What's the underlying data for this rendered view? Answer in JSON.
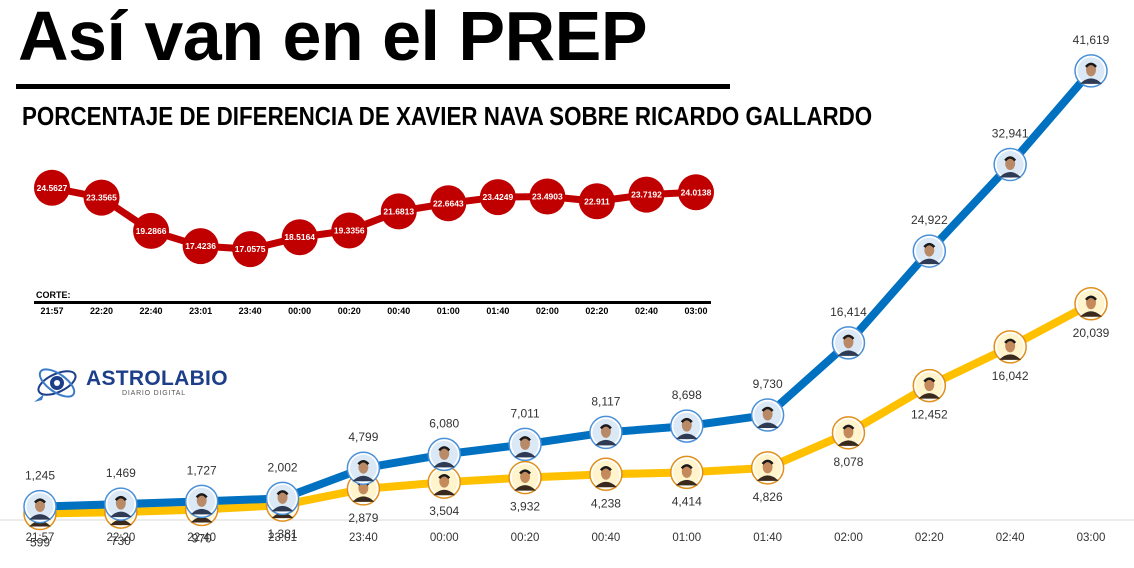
{
  "header": {
    "headline": "Así van en el PREP",
    "subtitle": "PORCENTAJE DE DIFERENCIA DE XAVIER NAVA SOBRE RICARDO GALLARDO"
  },
  "brand": {
    "name": "ASTROLABIO",
    "tagline": "DIARIO DIGITAL",
    "accent": "#1d3f8a"
  },
  "icons": {
    "brand": "astrolabe-logo-icon",
    "blue_marker": "candidate-portrait-icon",
    "yellow_marker": "candidate-portrait-icon"
  },
  "colors": {
    "percent_line": "#c00000",
    "blue_series": "#0070c0",
    "yellow_series": "#ffc000"
  },
  "chart_data": [
    {
      "type": "line",
      "title": "PORCENTAJE DE DIFERENCIA DE XAVIER NAVA SOBRE RICARDO GALLARDO",
      "xlabel": "CORTE:",
      "ylabel": "",
      "categories": [
        "21:57",
        "22:20",
        "22:40",
        "23:01",
        "23:40",
        "00:00",
        "00:20",
        "00:40",
        "01:00",
        "01:40",
        "02:00",
        "02:20",
        "02:40",
        "03:00"
      ],
      "values": [
        24.5627,
        23.3565,
        19.2866,
        17.4236,
        17.0575,
        18.5164,
        19.3356,
        21.6813,
        22.6643,
        23.4249,
        23.4903,
        22.911,
        23.7192,
        24.0138
      ],
      "data_labels": [
        "24.5627",
        "23.3565",
        "19.2866",
        "17.4236",
        "17.0575",
        "18.5164",
        "19.3356",
        "21.6813",
        "22.6643",
        "23.4249",
        "23.4903",
        "22.911",
        "23.7192",
        "24.0138"
      ],
      "ylim": [
        15,
        26
      ],
      "grid": false,
      "legend": "none"
    },
    {
      "type": "line",
      "title": "",
      "xlabel": "",
      "ylabel": "",
      "categories": [
        "21:57",
        "22:20",
        "22:40",
        "23:01",
        "23:40",
        "00:00",
        "00:20",
        "00:40",
        "01:00",
        "01:40",
        "02:00",
        "02:20",
        "02:40",
        "03:00"
      ],
      "series": [
        {
          "values": [
            1245,
            1469,
            1727,
            2002,
            4799,
            6080,
            7011,
            8117,
            8698,
            9730,
            16414,
            24922,
            32941,
            41619
          ],
          "data_labels": [
            "1,245",
            "1,469",
            "1,727",
            "2,002",
            "4,799",
            "6,080",
            "7,011",
            "8,117",
            "8,698",
            "9,730",
            "16,414",
            "24,922",
            "32,941",
            "41,619"
          ]
        },
        {
          "values": [
            599,
            730,
            970,
            1381,
            2879,
            3504,
            3932,
            4238,
            4414,
            4826,
            8078,
            12452,
            16042,
            20039
          ],
          "data_labels": [
            "599",
            "730",
            "970",
            "1,381",
            "2,879",
            "3,504",
            "3,932",
            "4,238",
            "4,414",
            "4,826",
            "8,078",
            "12,452",
            "16,042",
            "20,039"
          ]
        }
      ],
      "ylim": [
        0,
        43000
      ],
      "grid": false,
      "legend": "none"
    }
  ]
}
